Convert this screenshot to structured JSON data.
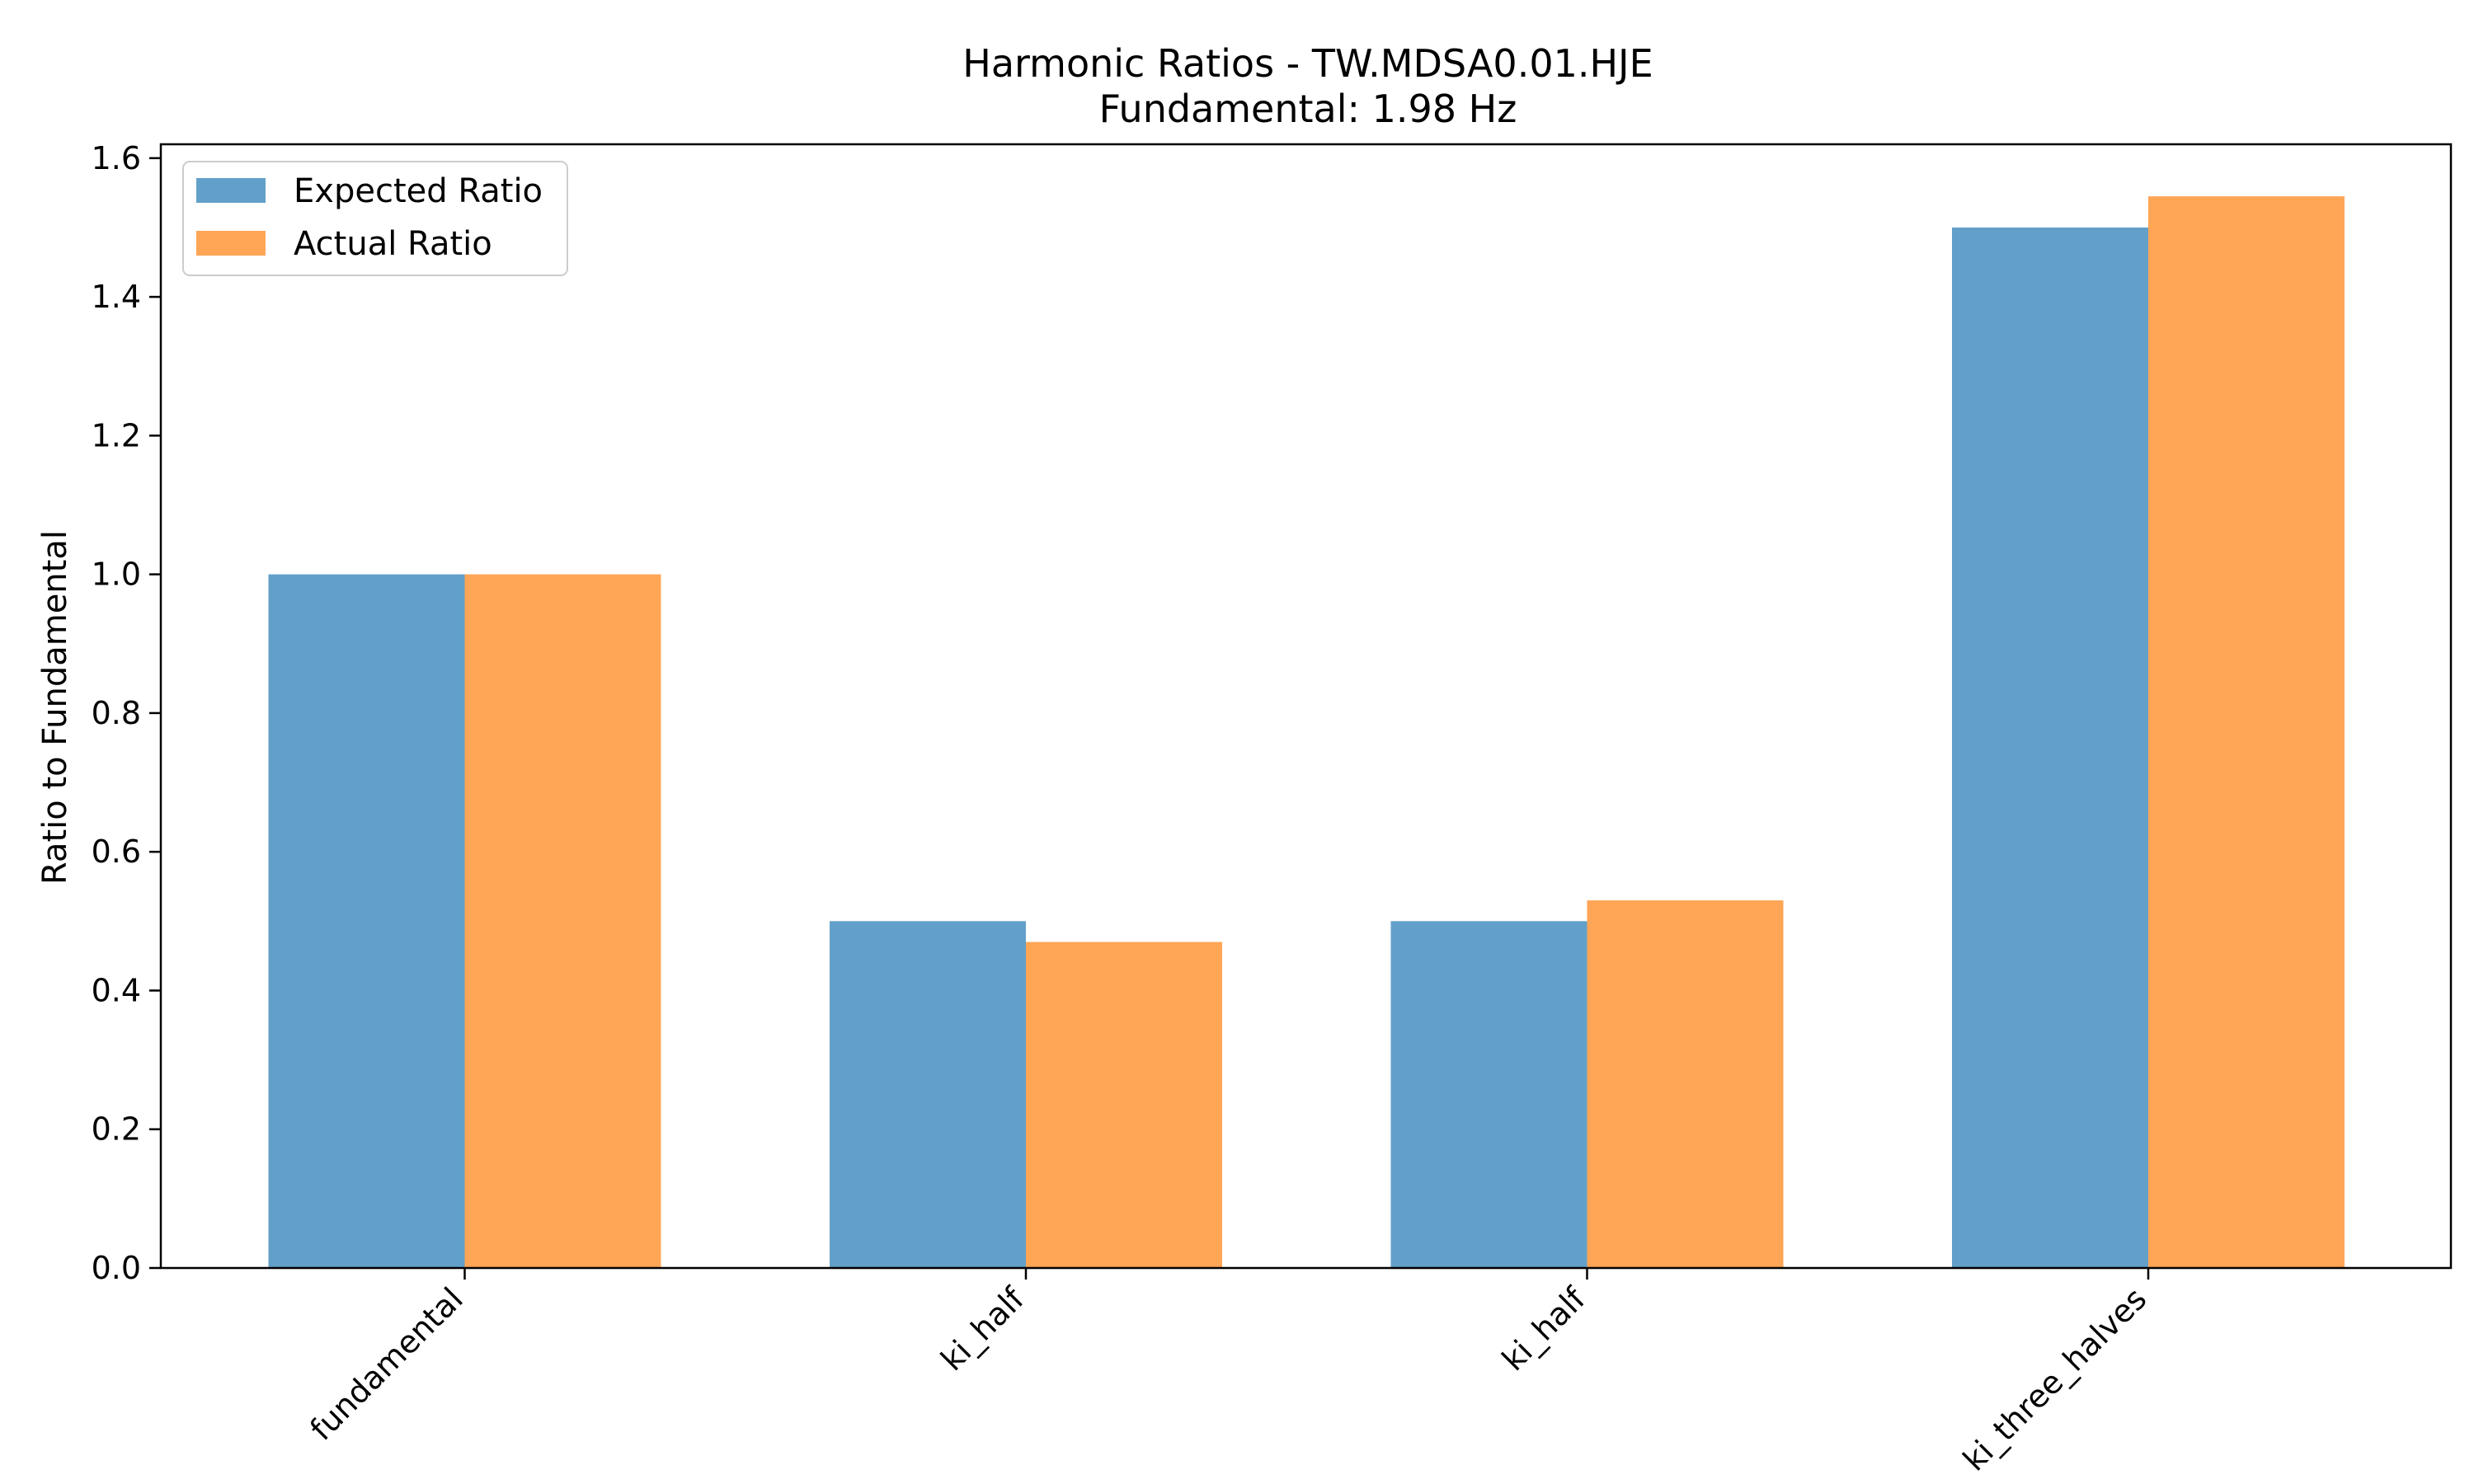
{
  "chart_data": {
    "type": "bar",
    "title": "Harmonic Ratios - TW.MDSA0.01.HJE",
    "subtitle": "Fundamental: 1.98 Hz",
    "xlabel": "",
    "ylabel": "Ratio to Fundamental",
    "categories": [
      "fundamental",
      "ki_half",
      "ki_half",
      "ki_three_halves"
    ],
    "series": [
      {
        "name": "Expected Ratio",
        "color": "#1f77b4",
        "values": [
          1.0,
          0.5,
          0.5,
          1.5
        ]
      },
      {
        "name": "Actual Ratio",
        "color": "#ff7f0e",
        "values": [
          1.0,
          0.47,
          0.53,
          1.545
        ]
      }
    ],
    "ylim": [
      0,
      1.62
    ],
    "yticks": [
      0.0,
      0.2,
      0.4,
      0.6,
      0.8,
      1.0,
      1.2,
      1.4,
      1.6
    ],
    "grid": false,
    "legend_position": "top-left"
  }
}
